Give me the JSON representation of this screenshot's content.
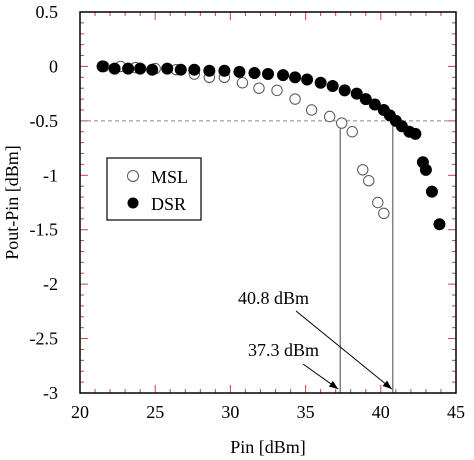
{
  "chart_data": {
    "type": "scatter",
    "xlabel": "Pin [dBm]",
    "ylabel": "Pout-Pin [dBm]",
    "xlim": [
      20,
      45
    ],
    "ylim": [
      -3,
      0.5
    ],
    "x_ticks": [
      20,
      25,
      30,
      35,
      40,
      45
    ],
    "y_ticks": [
      0.5,
      0,
      -0.5,
      -1,
      -1.5,
      -2,
      -2.5,
      -3
    ],
    "reference_line_y": -0.5,
    "legend_position": "middle-left",
    "series": [
      {
        "name": "MSL",
        "marker": "open-circle",
        "points": [
          [
            21.6,
            0.0
          ],
          [
            22.7,
            0.0
          ],
          [
            23.7,
            -0.01
          ],
          [
            25.0,
            -0.02
          ],
          [
            26.4,
            -0.03
          ],
          [
            27.6,
            -0.07
          ],
          [
            28.6,
            -0.1
          ],
          [
            29.6,
            -0.1
          ],
          [
            30.8,
            -0.15
          ],
          [
            31.9,
            -0.2
          ],
          [
            33.1,
            -0.22
          ],
          [
            34.3,
            -0.3
          ],
          [
            35.4,
            -0.4
          ],
          [
            36.6,
            -0.46
          ],
          [
            37.4,
            -0.52
          ],
          [
            38.1,
            -0.6
          ],
          [
            38.8,
            -0.95
          ],
          [
            39.2,
            -1.05
          ],
          [
            39.8,
            -1.25
          ],
          [
            40.2,
            -1.35
          ]
        ]
      },
      {
        "name": "DSR",
        "marker": "filled-circle",
        "points": [
          [
            21.5,
            0.0
          ],
          [
            22.3,
            -0.02
          ],
          [
            23.2,
            -0.02
          ],
          [
            24.0,
            -0.02
          ],
          [
            24.8,
            -0.03
          ],
          [
            25.8,
            -0.02
          ],
          [
            26.7,
            -0.03
          ],
          [
            27.6,
            -0.03
          ],
          [
            28.6,
            -0.04
          ],
          [
            29.6,
            -0.04
          ],
          [
            30.6,
            -0.05
          ],
          [
            31.6,
            -0.06
          ],
          [
            32.5,
            -0.07
          ],
          [
            33.5,
            -0.08
          ],
          [
            34.3,
            -0.1
          ],
          [
            35.1,
            -0.12
          ],
          [
            36.0,
            -0.15
          ],
          [
            36.8,
            -0.18
          ],
          [
            37.6,
            -0.22
          ],
          [
            38.4,
            -0.25
          ],
          [
            39.0,
            -0.3
          ],
          [
            39.6,
            -0.35
          ],
          [
            40.2,
            -0.4
          ],
          [
            40.6,
            -0.45
          ],
          [
            41.0,
            -0.5
          ],
          [
            41.4,
            -0.55
          ],
          [
            41.9,
            -0.6
          ],
          [
            42.3,
            -0.62
          ],
          [
            42.8,
            -0.88
          ],
          [
            43.0,
            -0.95
          ],
          [
            43.4,
            -1.15
          ],
          [
            43.9,
            -1.45
          ]
        ]
      }
    ],
    "annotations": [
      {
        "text": "40.8 dBm",
        "target": [
          40.8,
          -3.0
        ]
      },
      {
        "text": "37.3 dBm",
        "target": [
          37.3,
          -3.0
        ]
      }
    ],
    "vertical_markers": [
      {
        "x": 37.3,
        "y_top": -0.5
      },
      {
        "x": 40.8,
        "y_top": -0.5
      }
    ]
  }
}
